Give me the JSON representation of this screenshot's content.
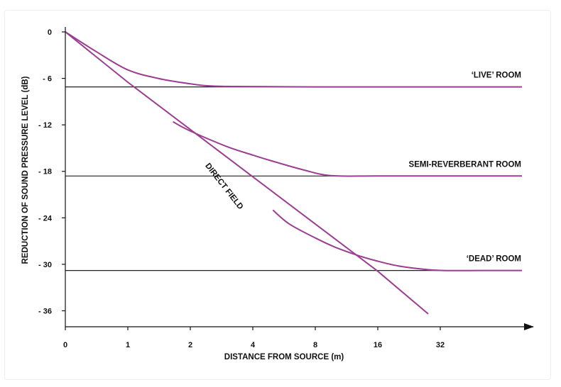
{
  "chart_data": {
    "type": "line",
    "title": "",
    "xlabel": "DISTANCE FROM SOURCE (m)",
    "ylabel": "REDUCTION OF SOUND PRESSURE LEVEL (dB)",
    "x_scale": "log2",
    "x_ticks": [
      {
        "value": 0.5,
        "label": "0"
      },
      {
        "value": 1,
        "label": "1"
      },
      {
        "value": 2,
        "label": "2"
      },
      {
        "value": 4,
        "label": "4"
      },
      {
        "value": 8,
        "label": "8"
      },
      {
        "value": 16,
        "label": "16"
      },
      {
        "value": 32,
        "label": "32"
      }
    ],
    "y_ticks": [
      {
        "value": 0,
        "label": "0"
      },
      {
        "value": -6,
        "label": "- 6"
      },
      {
        "value": -12,
        "label": "- 12"
      },
      {
        "value": -18,
        "label": "- 18"
      },
      {
        "value": -24,
        "label": "- 24"
      },
      {
        "value": -30,
        "label": "- 30"
      },
      {
        "value": -36,
        "label": "- 36"
      }
    ],
    "xlim": [
      0.5,
      100
    ],
    "ylim": [
      -38.5,
      0
    ],
    "line_color": "#9c3d92",
    "reference_color": "#222222",
    "direct_field": {
      "name": "DIRECT FIELD",
      "points": [
        [
          0.5,
          0
        ],
        [
          1,
          -6.5
        ],
        [
          2,
          -12.6
        ],
        [
          4,
          -18.7
        ],
        [
          8,
          -24.8
        ],
        [
          16,
          -30.9
        ],
        [
          28,
          -36.4
        ]
      ]
    },
    "series": [
      {
        "name": "‘LIVE’ ROOM",
        "level": -7.1,
        "points": [
          [
            0.5,
            0
          ],
          [
            0.7,
            -2.5
          ],
          [
            1,
            -4.9
          ],
          [
            1.4,
            -6.0
          ],
          [
            2,
            -6.7
          ],
          [
            2.6,
            -7.0
          ],
          [
            4,
            -7.05
          ],
          [
            8,
            -7.1
          ],
          [
            16,
            -7.1
          ],
          [
            32,
            -7.1
          ],
          [
            100,
            -7.1
          ]
        ]
      },
      {
        "name": "SEMI-REVERBERANT ROOM",
        "level": -18.6,
        "points": [
          [
            1.65,
            -11.6
          ],
          [
            2,
            -12.8
          ],
          [
            3,
            -14.8
          ],
          [
            4,
            -15.9
          ],
          [
            5,
            -16.7
          ],
          [
            7,
            -17.8
          ],
          [
            9.5,
            -18.55
          ],
          [
            16,
            -18.6
          ],
          [
            32,
            -18.6
          ],
          [
            100,
            -18.6
          ]
        ]
      },
      {
        "name": "‘DEAD’ ROOM",
        "level": -30.8,
        "points": [
          [
            5,
            -23.0
          ],
          [
            6,
            -24.8
          ],
          [
            8,
            -26.6
          ],
          [
            10,
            -27.8
          ],
          [
            13,
            -28.9
          ],
          [
            16,
            -29.6
          ],
          [
            20,
            -30.2
          ],
          [
            26,
            -30.6
          ],
          [
            33,
            -30.8
          ],
          [
            50,
            -30.8
          ],
          [
            100,
            -30.8
          ]
        ]
      }
    ]
  }
}
